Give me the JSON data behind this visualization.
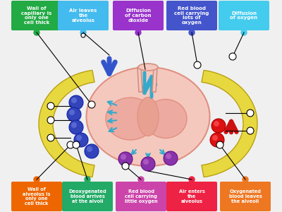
{
  "background_color": "#f0f0f0",
  "top_labels": [
    {
      "text": "Wall of\ncapillary is\nonly one\ncell thick",
      "color": "#22aa44",
      "dot_color": "#22aa44"
    },
    {
      "text": "Air leaves\nthe\nalveolus",
      "color": "#44bbee",
      "dot_color": "#44bbee"
    },
    {
      "text": "Diffusion\nof carbon\ndioxide",
      "color": "#9933cc",
      "dot_color": "#9933cc"
    },
    {
      "text": "Red blood\ncell carrying\nlots of\noxygen",
      "color": "#4455cc",
      "dot_color": "#4455cc"
    },
    {
      "text": "Diffusion\nof oxygen",
      "color": "#44ccee",
      "dot_color": "#44ccee"
    }
  ],
  "bottom_labels": [
    {
      "text": "Wall of\nalveolus is\nonly one\ncell thick",
      "color": "#ee6600",
      "dot_color": "#ee6600"
    },
    {
      "text": "Deoxygenated\nblood arrives\nat the alvoli",
      "color": "#22aa66",
      "dot_color": "#22aa66"
    },
    {
      "text": "Red blood\ncell carrying\nlittle oxygen",
      "color": "#cc44aa",
      "dot_color": "#cc44aa"
    },
    {
      "text": "Air enters\nthe\nalveolus",
      "color": "#ee2244",
      "dot_color": "#ee2244"
    },
    {
      "text": "Oxygenated\nblood leaves\nthe alveoli",
      "color": "#ee7722",
      "dot_color": "#ee7722"
    }
  ]
}
